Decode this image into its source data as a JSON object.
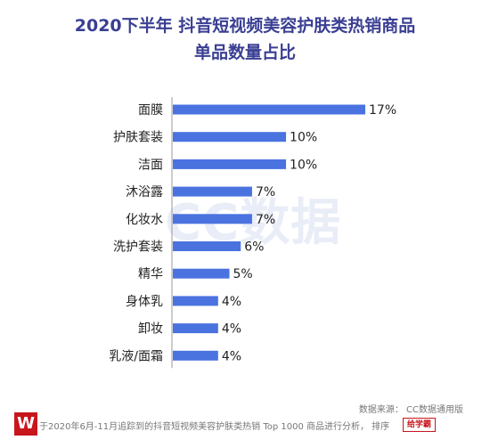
{
  "chart_data": {
    "type": "bar",
    "orientation": "horizontal",
    "title": [
      "2020下半年 抖音短视频美容护肤类热销商品",
      "单品数量占比"
    ],
    "categories": [
      "面膜",
      "护肤套装",
      "洁面",
      "沐浴露",
      "化妆水",
      "洗护套装",
      "精华",
      "身体乳",
      "卸妆",
      "乳液/面霜"
    ],
    "values": [
      17,
      10,
      10,
      7,
      7,
      6,
      5,
      4,
      4,
      4
    ],
    "value_suffix": "%",
    "xlim": [
      0,
      17
    ],
    "grid": false,
    "bar_color": "#4a73e0",
    "axis_color": "#999999"
  },
  "watermark": "CC数据",
  "source": "数据来源： CC数据通用版",
  "footnote": "于2020年6月-11月追踪到的抖音短视频美容护肤类热销 Top 1000 商品进行分析，   排序",
  "logo_left": "W",
  "logo_right": "给学霸"
}
